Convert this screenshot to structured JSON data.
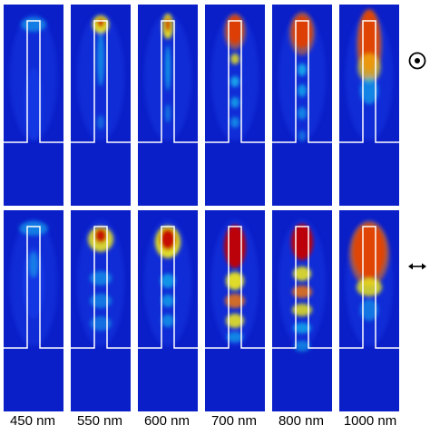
{
  "colors": {
    "background": "#0a1fc8",
    "low": "#1a44f0",
    "mid_low": "#16c0f0",
    "mid": "#f5ee14",
    "mid_high": "#ff7a00",
    "high": "#c40000",
    "outline": "#ffffff",
    "symbols": "#000000"
  },
  "wavelengths": [
    {
      "label": "450 nm"
    },
    {
      "label": "550 nm"
    },
    {
      "label": "600 nm"
    },
    {
      "label": "700 nm"
    },
    {
      "label": "800 nm"
    },
    {
      "label": "1000 nm"
    }
  ],
  "rows": [
    {
      "polarization_icon": "out-of-plane-dot-icon"
    },
    {
      "polarization_icon": "in-plane-double-arrow-icon"
    }
  ]
}
